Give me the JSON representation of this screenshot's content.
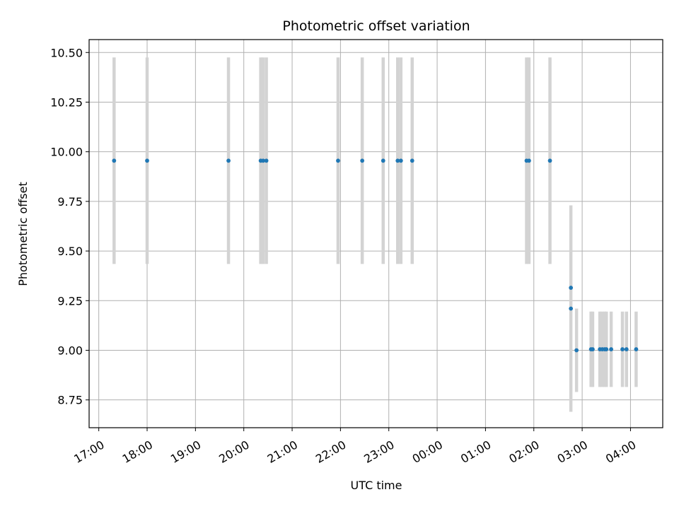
{
  "chart_data": {
    "type": "scatter",
    "title": "Photometric offset variation",
    "xlabel": "UTC time",
    "ylabel": "Photometric offset",
    "grid": true,
    "legend": "none",
    "xlim": [
      "2021-01-01T16:48",
      "2021-01-02T04:40"
    ],
    "ylim": [
      8.61,
      10.565
    ],
    "x_ticks": [
      {
        "t": "2021-01-01T17:00",
        "label": "17:00"
      },
      {
        "t": "2021-01-01T18:00",
        "label": "18:00"
      },
      {
        "t": "2021-01-01T19:00",
        "label": "19:00"
      },
      {
        "t": "2021-01-01T20:00",
        "label": "20:00"
      },
      {
        "t": "2021-01-01T21:00",
        "label": "21:00"
      },
      {
        "t": "2021-01-01T22:00",
        "label": "22:00"
      },
      {
        "t": "2021-01-01T23:00",
        "label": "23:00"
      },
      {
        "t": "2021-01-02T00:00",
        "label": "00:00"
      },
      {
        "t": "2021-01-02T01:00",
        "label": "01:00"
      },
      {
        "t": "2021-01-02T02:00",
        "label": "02:00"
      },
      {
        "t": "2021-01-02T03:00",
        "label": "03:00"
      },
      {
        "t": "2021-01-02T04:00",
        "label": "04:00"
      }
    ],
    "y_ticks": [
      {
        "v": 8.75,
        "label": "8.75"
      },
      {
        "v": 9.0,
        "label": "9.00"
      },
      {
        "v": 9.25,
        "label": "9.25"
      },
      {
        "v": 9.5,
        "label": "9.50"
      },
      {
        "v": 9.75,
        "label": "9.75"
      },
      {
        "v": 10.0,
        "label": "10.00"
      },
      {
        "v": 10.25,
        "label": "10.25"
      },
      {
        "v": 10.5,
        "label": "10.50"
      }
    ],
    "colors": {
      "point": "#1f77b4",
      "errorbar": "#d3d3d3",
      "grid": "#b0b0b0"
    },
    "points": [
      {
        "t": "2021-01-01T17:19",
        "y": 9.955,
        "err": 0.52
      },
      {
        "t": "2021-01-01T18:00",
        "y": 9.955,
        "err": 0.52
      },
      {
        "t": "2021-01-01T19:41",
        "y": 9.955,
        "err": 0.52
      },
      {
        "t": "2021-01-01T20:21",
        "y": 9.955,
        "err": 0.52
      },
      {
        "t": "2021-01-01T20:24",
        "y": 9.955,
        "err": 0.52
      },
      {
        "t": "2021-01-01T20:28",
        "y": 9.955,
        "err": 0.52
      },
      {
        "t": "2021-01-01T21:57",
        "y": 9.955,
        "err": 0.52
      },
      {
        "t": "2021-01-01T22:27",
        "y": 9.955,
        "err": 0.52
      },
      {
        "t": "2021-01-01T22:53",
        "y": 9.955,
        "err": 0.52
      },
      {
        "t": "2021-01-01T23:11",
        "y": 9.955,
        "err": 0.52
      },
      {
        "t": "2021-01-01T23:15",
        "y": 9.955,
        "err": 0.52
      },
      {
        "t": "2021-01-01T23:29",
        "y": 9.955,
        "err": 0.52
      },
      {
        "t": "2021-01-02T01:51",
        "y": 9.955,
        "err": 0.52
      },
      {
        "t": "2021-01-02T01:54",
        "y": 9.955,
        "err": 0.52
      },
      {
        "t": "2021-01-02T02:20",
        "y": 9.955,
        "err": 0.52
      },
      {
        "t": "2021-01-02T02:46",
        "y": 9.315,
        "err": 0.0
      },
      {
        "t": "2021-01-02T02:46",
        "y": 9.21,
        "err": 0.52
      },
      {
        "t": "2021-01-02T02:53",
        "y": 9.0,
        "err": 0.21
      },
      {
        "t": "2021-01-02T03:11",
        "y": 9.005,
        "err": 0.19
      },
      {
        "t": "2021-01-02T03:13",
        "y": 9.005,
        "err": 0.19
      },
      {
        "t": "2021-01-02T03:22",
        "y": 9.005,
        "err": 0.19
      },
      {
        "t": "2021-01-02T03:25",
        "y": 9.005,
        "err": 0.19
      },
      {
        "t": "2021-01-02T03:28",
        "y": 9.005,
        "err": 0.19
      },
      {
        "t": "2021-01-02T03:30",
        "y": 9.005,
        "err": 0.19
      },
      {
        "t": "2021-01-02T03:36",
        "y": 9.005,
        "err": 0.19
      },
      {
        "t": "2021-01-02T03:50",
        "y": 9.005,
        "err": 0.19
      },
      {
        "t": "2021-01-02T03:55",
        "y": 9.005,
        "err": 0.19
      },
      {
        "t": "2021-01-02T04:07",
        "y": 9.005,
        "err": 0.19
      }
    ]
  }
}
